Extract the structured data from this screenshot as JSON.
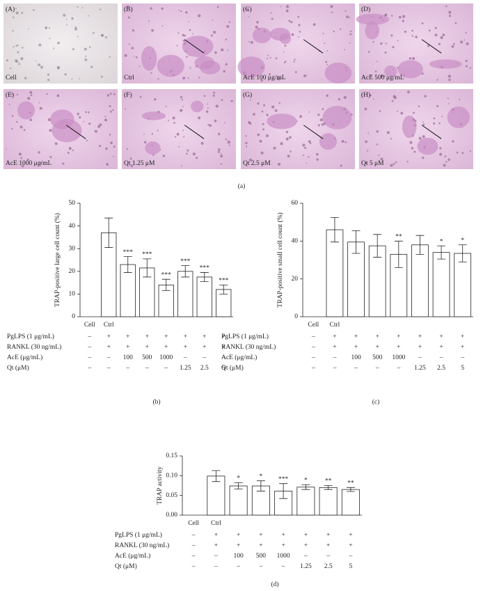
{
  "micrographs": {
    "caption": "(a)",
    "panels": [
      {
        "letter": "(A)",
        "label": "Cell"
      },
      {
        "letter": "(B)",
        "label": "Ctrl"
      },
      {
        "letter": "(C)",
        "label": "AcE 100 μg/mL"
      },
      {
        "letter": "(D)",
        "label": "AcE 500 μg/mL"
      },
      {
        "letter": "(E)",
        "label": "AcE 1000 μg/mL"
      },
      {
        "letter": "(F)",
        "label": "Qt 1.25 μM"
      },
      {
        "letter": "(G)",
        "label": "Qt 2.5 μM"
      },
      {
        "letter": "(H)",
        "label": "Qt 5 μM"
      }
    ]
  },
  "chart_data": [
    {
      "type": "bar",
      "caption": "(b)",
      "y_label": "TRAP-positive large cell count (%)",
      "categories": [
        "Cell",
        "Ctrl",
        null,
        null,
        null,
        null,
        null,
        null
      ],
      "values": [
        null,
        37,
        23,
        21.5,
        14,
        20,
        17.5,
        12
      ],
      "errors": [
        null,
        6.5,
        3.5,
        4,
        2.5,
        2.5,
        2,
        2
      ],
      "significance": [
        null,
        null,
        "***",
        "***",
        "***",
        "***",
        "***",
        "***"
      ],
      "ylim": [
        0,
        50
      ],
      "yticks": [
        0,
        10,
        20,
        30,
        40,
        50
      ],
      "conditions": [
        {
          "label": "PgLPS (1 μg/mL)",
          "cells": [
            "–",
            "+",
            "+",
            "+",
            "+",
            "+",
            "+",
            "+"
          ]
        },
        {
          "label": "RANKL (30 ng/mL)",
          "cells": [
            "–",
            "+",
            "+",
            "+",
            "+",
            "+",
            "+",
            "+"
          ]
        },
        {
          "label": "AcE (μg/mL)",
          "cells": [
            "–",
            "–",
            "100",
            "500",
            "1000",
            "–",
            "–",
            "–"
          ]
        },
        {
          "label": "Qt (μM)",
          "cells": [
            "–",
            "–",
            "–",
            "–",
            "–",
            "1.25",
            "2.5",
            "5"
          ]
        }
      ]
    },
    {
      "type": "bar",
      "caption": "(c)",
      "y_label": "TRAP-positive small cell count (%)",
      "categories": [
        "Cell",
        "Ctrl",
        null,
        null,
        null,
        null,
        null,
        null
      ],
      "values": [
        null,
        46,
        39.5,
        37.5,
        33,
        38,
        34,
        33.5
      ],
      "errors": [
        null,
        6.5,
        6,
        6,
        7,
        5,
        3.5,
        4.5
      ],
      "significance": [
        null,
        null,
        null,
        null,
        "**",
        null,
        "*",
        "*"
      ],
      "ylim": [
        0,
        60
      ],
      "yticks": [
        0,
        20,
        40,
        60
      ],
      "conditions": [
        {
          "label": "PgLPS (1 μg/mL)",
          "cells": [
            "–",
            "+",
            "+",
            "+",
            "+",
            "+",
            "+",
            "+"
          ]
        },
        {
          "label": "RANKL (30 ng/mL)",
          "cells": [
            "–",
            "+",
            "+",
            "+",
            "+",
            "+",
            "+",
            "+"
          ]
        },
        {
          "label": "AcE (μg/mL)",
          "cells": [
            "–",
            "–",
            "100",
            "500",
            "1000",
            "–",
            "–",
            "–"
          ]
        },
        {
          "label": "Qt (μM)",
          "cells": [
            "–",
            "–",
            "–",
            "–",
            "–",
            "1.25",
            "2.5",
            "5"
          ]
        }
      ]
    },
    {
      "type": "bar",
      "caption": "(d)",
      "y_label": "TRAP activity",
      "categories": [
        "Cell",
        "Ctrl",
        null,
        null,
        null,
        null,
        null,
        null
      ],
      "values": [
        null,
        0.099,
        0.074,
        0.074,
        0.061,
        0.071,
        0.07,
        0.065
      ],
      "errors": [
        null,
        0.014,
        0.008,
        0.013,
        0.019,
        0.006,
        0.005,
        0.005
      ],
      "significance": [
        null,
        null,
        "*",
        "*",
        "***",
        "*",
        "**",
        "**"
      ],
      "ylim": [
        0,
        0.15
      ],
      "yticks": [
        {
          "value": 0,
          "label": "0.00"
        },
        0.05,
        {
          "value": 0.1,
          "label": "0.10"
        },
        0.15
      ],
      "conditions": [
        {
          "label": "PgLPS (1 μg/mL)",
          "cells": [
            "–",
            "+",
            "+",
            "+",
            "+",
            "+",
            "+",
            "+"
          ]
        },
        {
          "label": "RANKL (30 ng/mL)",
          "cells": [
            "–",
            "+",
            "+",
            "+",
            "+",
            "+",
            "+",
            "+"
          ]
        },
        {
          "label": "AcE (μg/mL)",
          "cells": [
            "–",
            "–",
            "100",
            "500",
            "1000",
            "–",
            "–",
            "–"
          ]
        },
        {
          "label": "Qt (μM)",
          "cells": [
            "–",
            "–",
            "–",
            "–",
            "–",
            "1.25",
            "2.5",
            "5"
          ]
        }
      ]
    }
  ]
}
